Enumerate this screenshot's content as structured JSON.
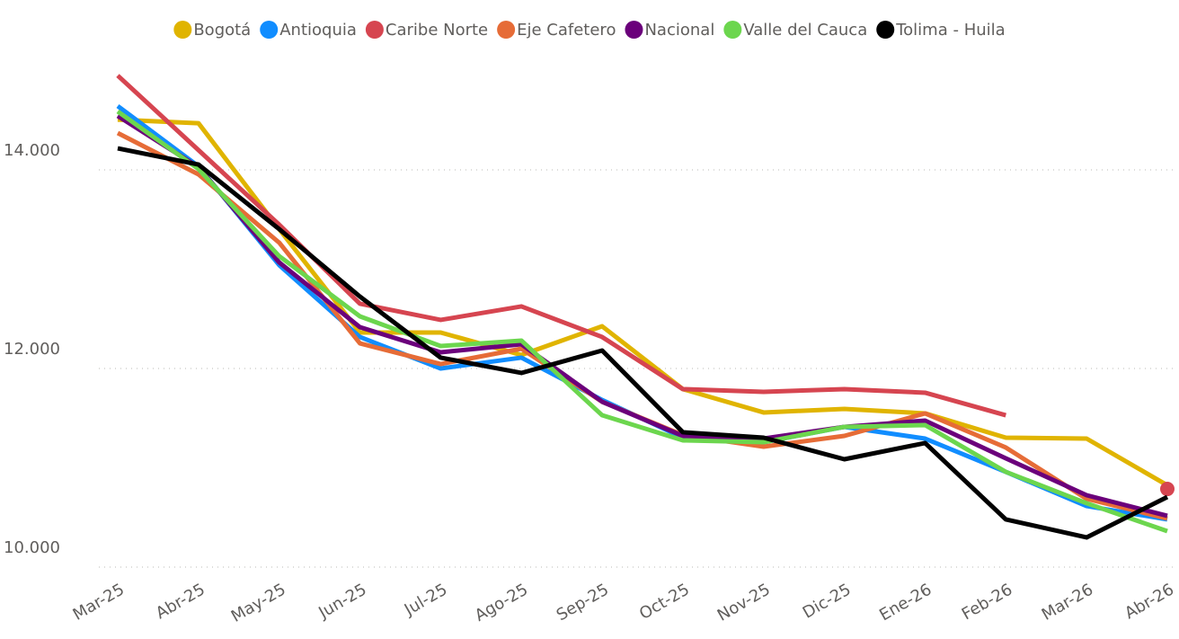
{
  "chart_data": {
    "type": "line",
    "categories": [
      "Mar-25",
      "Abr-25",
      "May-25",
      "Jun-25",
      "Jul-25",
      "Ago-25",
      "Sep-25",
      "Oct-25",
      "Nov-25",
      "Dic-25",
      "Ene-26",
      "Feb-26",
      "Mar-26",
      "Abr-26"
    ],
    "series": [
      {
        "name": "Bogotá",
        "color": "#E0B400",
        "values": [
          14506,
          14470,
          13403,
          12362,
          12362,
          12136,
          12425,
          11792,
          11557,
          11593,
          11548,
          11303,
          11294,
          10824
        ]
      },
      {
        "name": "Antioquia",
        "color": "#118DFF",
        "values": [
          14643,
          14036,
          13041,
          12317,
          12000,
          12109,
          11683,
          11303,
          11258,
          11412,
          11294,
          10959,
          10615,
          10480
        ]
      },
      {
        "name": "Caribe Norte",
        "color": "#D64550",
        "values": [
          14950,
          14199,
          13448,
          12652,
          12489,
          12625,
          12317,
          11792,
          11765,
          11792,
          11756,
          11529,
          null,
          10787
        ]
      },
      {
        "name": "Eje Cafetero",
        "color": "#E66C37",
        "values": [
          14371,
          13955,
          13267,
          12253,
          12045,
          12199,
          11665,
          11330,
          11213,
          11321,
          11548,
          11204,
          10688,
          10489
        ]
      },
      {
        "name": "Nacional",
        "color": "#6B007B",
        "values": [
          14543,
          14027,
          13068,
          12416,
          12163,
          12244,
          11665,
          11321,
          11294,
          11412,
          11475,
          11095,
          10724,
          10516
        ]
      },
      {
        "name": "Valle del Cauca",
        "color": "#6CD64E",
        "values": [
          14588,
          14009,
          13131,
          12525,
          12226,
          12281,
          11529,
          11276,
          11258,
          11412,
          11430,
          10959,
          10643,
          10362
        ]
      },
      {
        "name": "Tolima - Huila",
        "color": "#000000",
        "values": [
          14217,
          14054,
          13403,
          12724,
          12109,
          11955,
          12181,
          11358,
          11303,
          11086,
          11249,
          10480,
          10299,
          10706
        ]
      }
    ],
    "ylim": [
      10000,
      15000
    ],
    "yticks": [
      {
        "value": 10000,
        "label": "10.000"
      },
      {
        "value": 12000,
        "label": "12.000"
      },
      {
        "value": 14000,
        "label": "14.000"
      }
    ],
    "grid": true
  }
}
